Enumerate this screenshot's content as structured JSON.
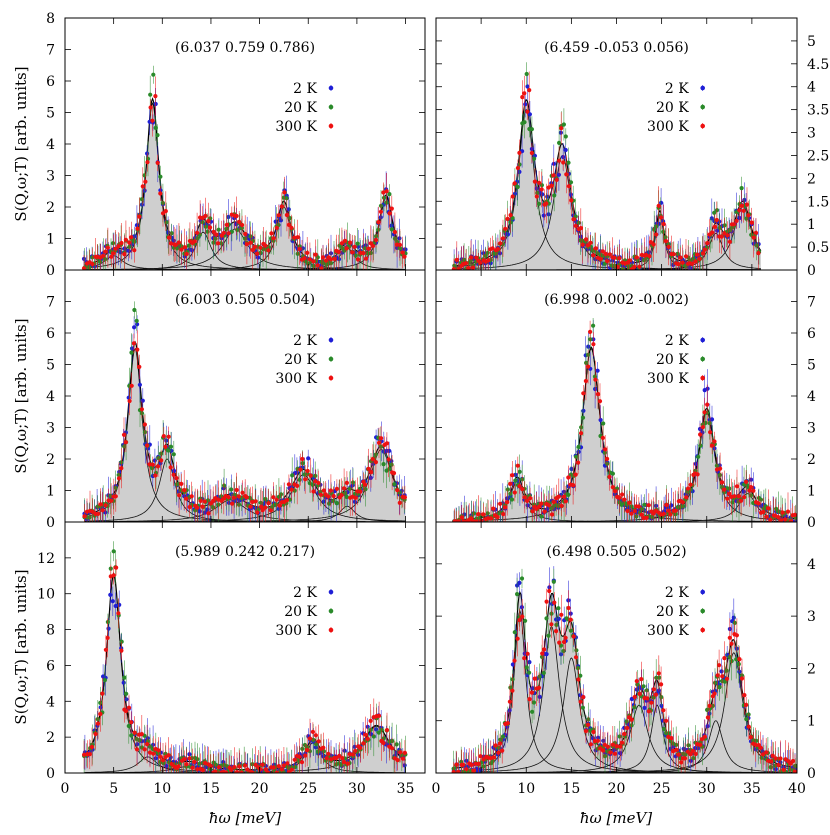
{
  "figure": {
    "xlabel": "ħω [meV]",
    "ylabel": "S(Q,ω;T) [arb. units]",
    "legend": [
      "2 K",
      "20 K",
      "300 K"
    ],
    "colors": {
      "2 K": "#1f1fd6",
      "20 K": "#2a8a2a",
      "300 K": "#ee1111",
      "fill": "#cfcfcf",
      "fit": "#000000"
    }
  },
  "chart_data": [
    {
      "type": "scatter",
      "title": "(6.037 0.759 0.786)",
      "xlim": [
        0,
        37
      ],
      "ylim": [
        0,
        8
      ],
      "xticks": [
        0,
        5,
        10,
        15,
        20,
        25,
        30,
        35
      ],
      "yticks": [
        0,
        1,
        2,
        3,
        4,
        5,
        6,
        7,
        8
      ],
      "legend_position": "top-right",
      "x_range": [
        2,
        35
      ],
      "peaks": [
        [
          5.0,
          0.45,
          1.2
        ],
        [
          9.0,
          5.3,
          0.8
        ],
        [
          14.2,
          1.2,
          1.0
        ],
        [
          17.5,
          1.3,
          1.6
        ],
        [
          22.5,
          2.0,
          0.9
        ],
        [
          29.0,
          0.7,
          1.0
        ],
        [
          33.0,
          2.3,
          0.9
        ]
      ],
      "series": [
        {
          "name": "2 K",
          "color": "#1f1fd6"
        },
        {
          "name": "20 K",
          "color": "#2a8a2a"
        },
        {
          "name": "300 K",
          "color": "#ee1111"
        }
      ]
    },
    {
      "type": "scatter",
      "title": "(6.459 -0.053 0.056)",
      "xlim": [
        0,
        40
      ],
      "ylim": [
        0,
        5.5
      ],
      "xticks": [
        0,
        5,
        10,
        15,
        20,
        25,
        30,
        35,
        40
      ],
      "yticks": [
        0,
        0.5,
        1,
        1.5,
        2,
        2.5,
        3,
        3.5,
        4,
        4.5,
        5
      ],
      "legend_position": "top-right",
      "x_range": [
        2,
        36
      ],
      "peaks": [
        [
          10.0,
          3.5,
          1.1
        ],
        [
          14.0,
          2.5,
          1.2
        ],
        [
          24.8,
          1.2,
          0.6
        ],
        [
          31.0,
          0.8,
          1.0
        ],
        [
          34.0,
          1.4,
          1.2
        ]
      ],
      "series": [
        {
          "name": "2 K",
          "color": "#1f1fd6"
        },
        {
          "name": "20 K",
          "color": "#2a8a2a"
        },
        {
          "name": "300 K",
          "color": "#ee1111"
        }
      ]
    },
    {
      "type": "scatter",
      "title": "(6.003 0.505 0.504)",
      "xlim": [
        0,
        37
      ],
      "ylim": [
        0,
        8
      ],
      "xticks": [
        0,
        5,
        10,
        15,
        20,
        25,
        30,
        35
      ],
      "yticks": [
        0,
        1,
        2,
        3,
        4,
        5,
        6,
        7
      ],
      "legend_position": "top-right",
      "x_range": [
        2,
        35
      ],
      "peaks": [
        [
          7.2,
          5.5,
          0.9
        ],
        [
          10.5,
          2.0,
          1.0
        ],
        [
          17.0,
          0.7,
          2.0
        ],
        [
          24.5,
          1.5,
          1.6
        ],
        [
          29.0,
          0.5,
          1.0
        ],
        [
          32.5,
          2.3,
          1.5
        ]
      ],
      "series": [
        {
          "name": "2 K",
          "color": "#1f1fd6"
        },
        {
          "name": "20 K",
          "color": "#2a8a2a"
        },
        {
          "name": "300 K",
          "color": "#ee1111"
        }
      ]
    },
    {
      "type": "scatter",
      "title": "(6.998 0.002 -0.002)",
      "xlim": [
        0,
        40
      ],
      "ylim": [
        0,
        8
      ],
      "xticks": [
        0,
        5,
        10,
        15,
        20,
        25,
        30,
        35,
        40
      ],
      "yticks": [
        0,
        1,
        2,
        3,
        4,
        5,
        6,
        7
      ],
      "legend_position": "top-right",
      "x_range": [
        2,
        40
      ],
      "peaks": [
        [
          9.0,
          1.3,
          1.0
        ],
        [
          17.2,
          5.5,
          1.2
        ],
        [
          30.0,
          3.5,
          1.1
        ],
        [
          34.5,
          0.9,
          1.2
        ]
      ],
      "series": [
        {
          "name": "2 K",
          "color": "#1f1fd6"
        },
        {
          "name": "20 K",
          "color": "#2a8a2a"
        },
        {
          "name": "300 K",
          "color": "#ee1111"
        }
      ]
    },
    {
      "type": "scatter",
      "title": "(5.989 0.242 0.217)",
      "xlim": [
        0,
        37
      ],
      "ylim": [
        0,
        14
      ],
      "xticks": [
        0,
        5,
        10,
        15,
        20,
        25,
        30,
        35
      ],
      "yticks": [
        0,
        2,
        4,
        6,
        8,
        10,
        12
      ],
      "legend_position": "top-right",
      "x_range": [
        2,
        35
      ],
      "peaks": [
        [
          5.0,
          11.0,
          0.9
        ],
        [
          8.5,
          0.9,
          1.2
        ],
        [
          13.0,
          0.4,
          2.0
        ],
        [
          25.5,
          1.7,
          1.0
        ],
        [
          32.0,
          2.6,
          1.8
        ]
      ],
      "series": [
        {
          "name": "2 K",
          "color": "#1f1fd6"
        },
        {
          "name": "20 K",
          "color": "#2a8a2a"
        },
        {
          "name": "300 K",
          "color": "#ee1111"
        }
      ]
    },
    {
      "type": "scatter",
      "title": "(6.498 0.505 0.502)",
      "xlim": [
        0,
        40
      ],
      "ylim": [
        0,
        4.8
      ],
      "xticks": [
        0,
        5,
        10,
        15,
        20,
        25,
        30,
        35,
        40
      ],
      "yticks": [
        0,
        1,
        2,
        3,
        4
      ],
      "legend_position": "top-right",
      "x_range": [
        2,
        40
      ],
      "peaks": [
        [
          9.3,
          3.1,
          0.8
        ],
        [
          12.8,
          2.8,
          1.1
        ],
        [
          15.0,
          2.2,
          1.1
        ],
        [
          22.5,
          1.3,
          1.2
        ],
        [
          24.5,
          1.3,
          0.8
        ],
        [
          31.0,
          1.0,
          1.0
        ],
        [
          33.0,
          2.3,
          1.2
        ]
      ],
      "series": [
        {
          "name": "2 K",
          "color": "#1f1fd6"
        },
        {
          "name": "20 K",
          "color": "#2a8a2a"
        },
        {
          "name": "300 K",
          "color": "#ee1111"
        }
      ]
    }
  ]
}
